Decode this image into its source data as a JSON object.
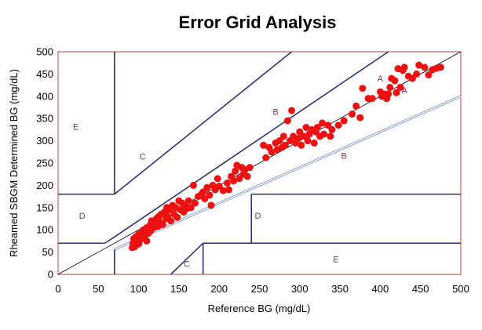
{
  "chart_data": {
    "type": "scatter",
    "title": "Error Grid Analysis",
    "xlabel": "Reference BG (mg/dL)",
    "ylabel": "Rheamed SBGM Determined BG (mg/dL)",
    "xlim": [
      0,
      500
    ],
    "ylim": [
      0,
      500
    ],
    "xticks": [
      "0",
      "50",
      "100",
      "150",
      "200",
      "250",
      "300",
      "350",
      "400",
      "450",
      "500"
    ],
    "yticks": [
      "0",
      "50",
      "100",
      "150",
      "200",
      "250",
      "300",
      "350",
      "400",
      "450",
      "500"
    ],
    "grid": false,
    "legend": "none",
    "colors": {
      "points": "#ee1111",
      "zone_lines": "#2a3472",
      "identity_line": "#000000",
      "double_line": "#8fa6d4",
      "zone_labels": "#7a3a5e",
      "frame": "#c04040"
    },
    "zone_labels": [
      {
        "text": "A",
        "x": 400,
        "y": 433
      },
      {
        "text": "A",
        "x": 430,
        "y": 407
      },
      {
        "text": "B",
        "x": 270,
        "y": 358
      },
      {
        "text": "B",
        "x": 355,
        "y": 260
      },
      {
        "text": "C",
        "x": 105,
        "y": 258
      },
      {
        "text": "C",
        "x": 160,
        "y": 17
      },
      {
        "text": "D",
        "x": 30,
        "y": 125
      },
      {
        "text": "D",
        "x": 248,
        "y": 125
      },
      {
        "text": "E",
        "x": 22,
        "y": 325
      },
      {
        "text": "E",
        "x": 345,
        "y": 27
      }
    ],
    "points": [
      [
        92,
        60
      ],
      [
        95,
        62
      ],
      [
        93,
        70
      ],
      [
        96,
        75
      ],
      [
        94,
        80
      ],
      [
        98,
        72
      ],
      [
        100,
        68
      ],
      [
        97,
        85
      ],
      [
        100,
        90
      ],
      [
        102,
        78
      ],
      [
        104,
        95
      ],
      [
        105,
        82
      ],
      [
        106,
        100
      ],
      [
        108,
        88
      ],
      [
        110,
        105
      ],
      [
        110,
        75
      ],
      [
        112,
        92
      ],
      [
        114,
        110
      ],
      [
        115,
        98
      ],
      [
        116,
        120
      ],
      [
        118,
        104
      ],
      [
        120,
        115
      ],
      [
        122,
        125
      ],
      [
        124,
        108
      ],
      [
        125,
        130
      ],
      [
        126,
        118
      ],
      [
        128,
        135
      ],
      [
        130,
        112
      ],
      [
        132,
        140
      ],
      [
        134,
        125
      ],
      [
        135,
        150
      ],
      [
        136,
        130
      ],
      [
        138,
        145
      ],
      [
        140,
        120
      ],
      [
        142,
        155
      ],
      [
        144,
        135
      ],
      [
        146,
        150
      ],
      [
        148,
        128
      ],
      [
        150,
        165
      ],
      [
        152,
        145
      ],
      [
        154,
        160
      ],
      [
        156,
        140
      ],
      [
        158,
        155
      ],
      [
        160,
        148
      ],
      [
        162,
        165
      ],
      [
        165,
        150
      ],
      [
        168,
        200
      ],
      [
        170,
        160
      ],
      [
        174,
        175
      ],
      [
        178,
        180
      ],
      [
        180,
        185
      ],
      [
        182,
        170
      ],
      [
        185,
        195
      ],
      [
        188,
        178
      ],
      [
        190,
        155
      ],
      [
        192,
        200
      ],
      [
        195,
        190
      ],
      [
        198,
        215
      ],
      [
        200,
        198
      ],
      [
        205,
        188
      ],
      [
        210,
        205
      ],
      [
        212,
        190
      ],
      [
        215,
        220
      ],
      [
        218,
        210
      ],
      [
        220,
        232
      ],
      [
        222,
        245
      ],
      [
        225,
        215
      ],
      [
        228,
        240
      ],
      [
        230,
        225
      ],
      [
        232,
        235
      ],
      [
        235,
        220
      ],
      [
        238,
        240
      ],
      [
        255,
        290
      ],
      [
        258,
        262
      ],
      [
        262,
        285
      ],
      [
        265,
        275
      ],
      [
        270,
        295
      ],
      [
        272,
        280
      ],
      [
        275,
        300
      ],
      [
        278,
        285
      ],
      [
        280,
        310
      ],
      [
        282,
        290
      ],
      [
        285,
        345
      ],
      [
        288,
        300
      ],
      [
        290,
        368
      ],
      [
        292,
        310
      ],
      [
        295,
        295
      ],
      [
        298,
        305
      ],
      [
        300,
        320
      ],
      [
        302,
        290
      ],
      [
        305,
        310
      ],
      [
        308,
        330
      ],
      [
        310,
        300
      ],
      [
        312,
        315
      ],
      [
        315,
        325
      ],
      [
        318,
        295
      ],
      [
        320,
        320
      ],
      [
        322,
        330
      ],
      [
        325,
        310
      ],
      [
        328,
        340
      ],
      [
        330,
        315
      ],
      [
        335,
        335
      ],
      [
        338,
        310
      ],
      [
        340,
        325
      ],
      [
        348,
        335
      ],
      [
        355,
        345
      ],
      [
        365,
        360
      ],
      [
        370,
        378
      ],
      [
        375,
        352
      ],
      [
        378,
        418
      ],
      [
        385,
        395
      ],
      [
        390,
        395
      ],
      [
        400,
        410
      ],
      [
        402,
        400
      ],
      [
        405,
        405
      ],
      [
        408,
        395
      ],
      [
        410,
        405
      ],
      [
        412,
        420
      ],
      [
        414,
        440
      ],
      [
        418,
        435
      ],
      [
        420,
        408
      ],
      [
        422,
        462
      ],
      [
        425,
        420
      ],
      [
        428,
        458
      ],
      [
        430,
        465
      ],
      [
        435,
        445
      ],
      [
        440,
        440
      ],
      [
        445,
        450
      ],
      [
        448,
        470
      ],
      [
        455,
        465
      ],
      [
        460,
        448
      ],
      [
        465,
        460
      ],
      [
        470,
        463
      ],
      [
        475,
        465
      ]
    ]
  }
}
